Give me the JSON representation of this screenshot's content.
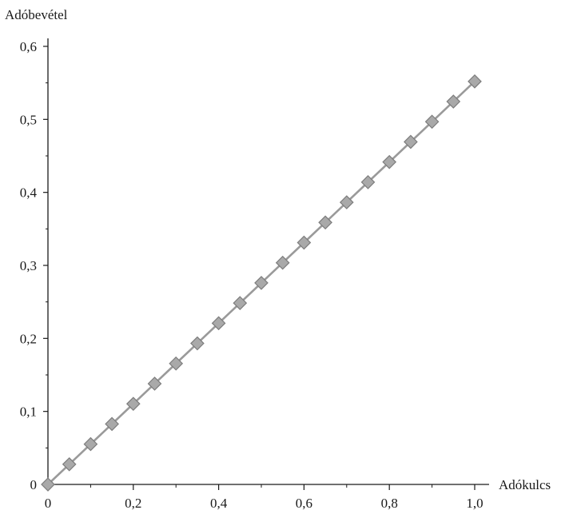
{
  "chart_data": {
    "type": "line",
    "xlabel": "Adókulcs",
    "ylabel": "Adóbevétel",
    "xlim": [
      0,
      1.0
    ],
    "ylim": [
      0,
      0.6
    ],
    "x_ticks": [
      {
        "value": 0,
        "label": "0"
      },
      {
        "value": 0.2,
        "label": "0,2"
      },
      {
        "value": 0.4,
        "label": "0,4"
      },
      {
        "value": 0.6,
        "label": "0,6"
      },
      {
        "value": 0.8,
        "label": "0,8"
      },
      {
        "value": 1.0,
        "label": "1,0"
      }
    ],
    "y_ticks": [
      {
        "value": 0,
        "label": "0"
      },
      {
        "value": 0.1,
        "label": "0,1"
      },
      {
        "value": 0.2,
        "label": "0,2"
      },
      {
        "value": 0.3,
        "label": "0,3"
      },
      {
        "value": 0.4,
        "label": "0,4"
      },
      {
        "value": 0.5,
        "label": "0,5"
      },
      {
        "value": 0.6,
        "label": "0,6"
      }
    ],
    "x_minor_ticks": [
      0.1,
      0.3,
      0.5,
      0.7,
      0.9
    ],
    "y_minor_ticks": [
      0.05,
      0.15,
      0.25,
      0.35,
      0.45,
      0.55
    ],
    "grid": false,
    "marker": "diamond",
    "series": [
      {
        "x": [
          0,
          0.05,
          0.1,
          0.15,
          0.2,
          0.25,
          0.3,
          0.35,
          0.4,
          0.45,
          0.5,
          0.55,
          0.6,
          0.65,
          0.7,
          0.75,
          0.8,
          0.85,
          0.9,
          0.95,
          1.0
        ],
        "y": [
          0,
          0.0276,
          0.0552,
          0.0828,
          0.1104,
          0.138,
          0.1656,
          0.1932,
          0.2208,
          0.2484,
          0.276,
          0.3036,
          0.3312,
          0.3588,
          0.3864,
          0.414,
          0.4416,
          0.4692,
          0.4968,
          0.5244,
          0.552
        ]
      }
    ],
    "colors": {
      "axis": "#1a1a1a",
      "line": "#9a9a9a",
      "marker_fill": "#a9a9a9",
      "marker_stroke": "#7c7c7c"
    }
  }
}
